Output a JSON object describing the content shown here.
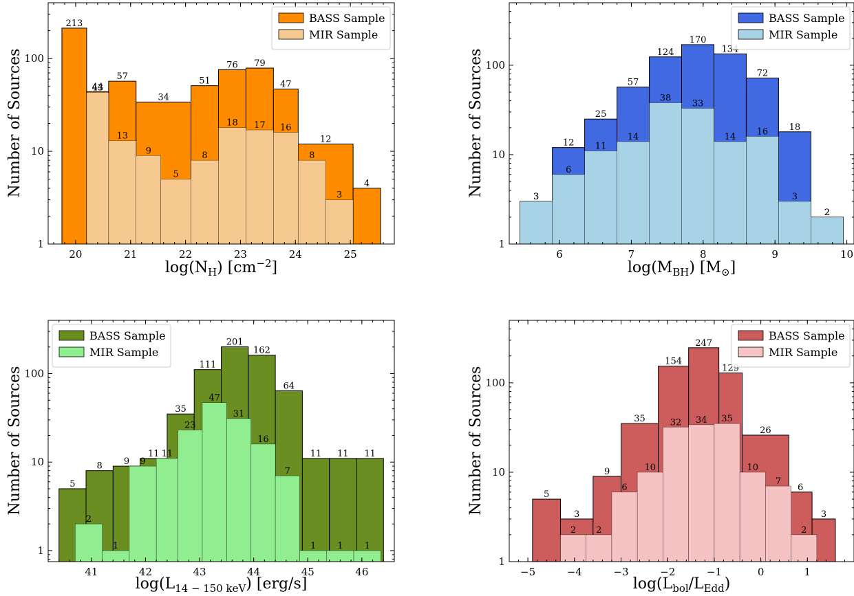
{
  "chart_data": [
    {
      "type": "bar",
      "ylabel": "Number of Sources",
      "xlabel": "log(N_H) [cm^-2]",
      "yscale": "log",
      "ylim": [
        1,
        400
      ],
      "xlim": [
        19.5,
        25.8
      ],
      "xticks": [
        20,
        21,
        22,
        23,
        24,
        25
      ],
      "yticks": [
        1,
        10,
        100
      ],
      "ytick_labels": [
        "1",
        "10",
        "100"
      ],
      "grid": false,
      "legend_position": "top-right",
      "series": [
        {
          "name": "BASS Sample",
          "color": "#ff8c00",
          "bins": [
            [
              19.75,
              20.2,
              213
            ],
            [
              20.2,
              20.6,
              44
            ],
            [
              20.6,
              21.1,
              57
            ],
            [
              21.1,
              22.1,
              34
            ],
            [
              22.1,
              22.6,
              51
            ],
            [
              22.6,
              23.1,
              76
            ],
            [
              23.1,
              23.6,
              79
            ],
            [
              23.6,
              24.05,
              47
            ],
            [
              24.05,
              25.05,
              12
            ],
            [
              25.05,
              25.55,
              4
            ]
          ]
        },
        {
          "name": "MIR Sample",
          "color": "#f5c98f",
          "bins": [
            [
              20.2,
              20.6,
              43
            ],
            [
              20.6,
              21.1,
              13
            ],
            [
              21.1,
              21.55,
              9
            ],
            [
              21.55,
              22.1,
              5
            ],
            [
              22.1,
              22.6,
              8
            ],
            [
              22.6,
              23.1,
              18
            ],
            [
              23.1,
              23.6,
              17
            ],
            [
              23.6,
              24.05,
              16
            ],
            [
              24.05,
              24.55,
              8
            ],
            [
              24.55,
              25.05,
              3
            ]
          ]
        }
      ]
    },
    {
      "type": "bar",
      "ylabel": "Number of Sources",
      "xlabel": "log(M_BH) [M_sun]",
      "yscale": "log",
      "ylim": [
        1,
        500
      ],
      "xlim": [
        5.3,
        10.1
      ],
      "xticks": [
        6,
        7,
        8,
        9,
        10
      ],
      "yticks": [
        1,
        10,
        100
      ],
      "ytick_labels": [
        "1",
        "10",
        "100"
      ],
      "grid": false,
      "legend_position": "top-right",
      "series": [
        {
          "name": "BASS Sample",
          "color": "#4169e1",
          "bins": [
            [
              5.45,
              5.9,
              3
            ],
            [
              5.9,
              6.35,
              12
            ],
            [
              6.35,
              6.8,
              25
            ],
            [
              6.8,
              7.25,
              57
            ],
            [
              7.25,
              7.7,
              124
            ],
            [
              7.7,
              8.15,
              170
            ],
            [
              8.15,
              8.6,
              134
            ],
            [
              8.6,
              9.05,
              72
            ],
            [
              9.05,
              9.5,
              18
            ],
            [
              9.5,
              9.95,
              2
            ]
          ]
        },
        {
          "name": "MIR Sample",
          "color": "#a8d2e6",
          "bins": [
            [
              5.45,
              5.9,
              3
            ],
            [
              5.9,
              6.35,
              6
            ],
            [
              6.35,
              6.8,
              11
            ],
            [
              6.8,
              7.25,
              14
            ],
            [
              7.25,
              7.7,
              38
            ],
            [
              7.7,
              8.15,
              33
            ],
            [
              8.15,
              8.6,
              14
            ],
            [
              8.6,
              9.05,
              16
            ],
            [
              9.05,
              9.5,
              3
            ],
            [
              9.5,
              9.95,
              2
            ]
          ]
        }
      ]
    },
    {
      "type": "bar",
      "ylabel": "Number of Sources",
      "xlabel": "log(L_14-150 keV) [erg/s]",
      "yscale": "log",
      "ylim": [
        0.75,
        400
      ],
      "xlim": [
        40.2,
        46.6
      ],
      "xticks": [
        41,
        42,
        43,
        44,
        45,
        46
      ],
      "yticks": [
        1,
        10,
        100
      ],
      "ytick_labels": [
        "1",
        "10",
        "100"
      ],
      "grid": false,
      "legend_position": "top-left",
      "series": [
        {
          "name": "BASS Sample",
          "color": "#6b8e23",
          "bins": [
            [
              40.4,
              40.9,
              5
            ],
            [
              40.9,
              41.4,
              8
            ],
            [
              41.4,
              41.9,
              9
            ],
            [
              41.9,
              42.4,
              11
            ],
            [
              42.4,
              42.9,
              35
            ],
            [
              42.9,
              43.4,
              111
            ],
            [
              43.4,
              43.9,
              201
            ],
            [
              43.9,
              44.4,
              162
            ],
            [
              44.4,
              44.9,
              64
            ],
            [
              44.9,
              45.4,
              11
            ],
            [
              45.4,
              45.9,
              11
            ],
            [
              45.9,
              46.4,
              11
            ]
          ]
        },
        {
          "name": "MIR Sample",
          "color": "#90ee90",
          "bins": [
            [
              40.7,
              41.2,
              2
            ],
            [
              41.2,
              41.7,
              1
            ],
            [
              41.7,
              42.2,
              9
            ],
            [
              42.2,
              42.6,
              11
            ],
            [
              42.6,
              43.05,
              23
            ],
            [
              43.05,
              43.5,
              47
            ],
            [
              43.5,
              43.95,
              31
            ],
            [
              43.95,
              44.4,
              16
            ],
            [
              44.4,
              44.85,
              7
            ],
            [
              44.85,
              45.35,
              1
            ],
            [
              45.35,
              45.85,
              1
            ],
            [
              45.85,
              46.35,
              1
            ]
          ]
        }
      ]
    },
    {
      "type": "bar",
      "ylabel": "Number of Sources",
      "xlabel": "log(L_bol/L_Edd)",
      "yscale": "log",
      "ylim": [
        1,
        500
      ],
      "xlim": [
        -5.4,
        2.0
      ],
      "xticks": [
        -5,
        -4,
        -3,
        -2,
        -1,
        0,
        1
      ],
      "xtick_labels": [
        "−5",
        "−4",
        "−3",
        "−2",
        "−1",
        "0",
        "1"
      ],
      "yticks": [
        1,
        10,
        100
      ],
      "ytick_labels": [
        "1",
        "10",
        "100"
      ],
      "grid": false,
      "legend_position": "top-right",
      "series": [
        {
          "name": "BASS Sample",
          "color": "#cd5c5c",
          "bins": [
            [
              -4.9,
              -4.3,
              5
            ],
            [
              -4.3,
              -3.6,
              3
            ],
            [
              -3.6,
              -3.0,
              9
            ],
            [
              -3.0,
              -2.2,
              35
            ],
            [
              -2.2,
              -1.55,
              154
            ],
            [
              -1.55,
              -0.9,
              247
            ],
            [
              -0.9,
              -0.4,
              129
            ],
            [
              -0.4,
              0.6,
              26
            ],
            [
              0.6,
              1.1,
              6
            ],
            [
              1.1,
              1.6,
              3
            ]
          ]
        },
        {
          "name": "MIR Sample",
          "color": "#f5c3c3",
          "bins": [
            [
              -4.3,
              -3.75,
              2
            ],
            [
              -3.75,
              -3.2,
              2
            ],
            [
              -3.2,
              -2.65,
              6
            ],
            [
              -2.65,
              -2.1,
              10
            ],
            [
              -2.1,
              -1.55,
              32
            ],
            [
              -1.55,
              -1.0,
              34
            ],
            [
              -1.0,
              -0.45,
              35
            ],
            [
              -0.45,
              0.1,
              10
            ],
            [
              0.1,
              0.65,
              7
            ],
            [
              0.65,
              1.2,
              2
            ]
          ]
        }
      ]
    }
  ]
}
